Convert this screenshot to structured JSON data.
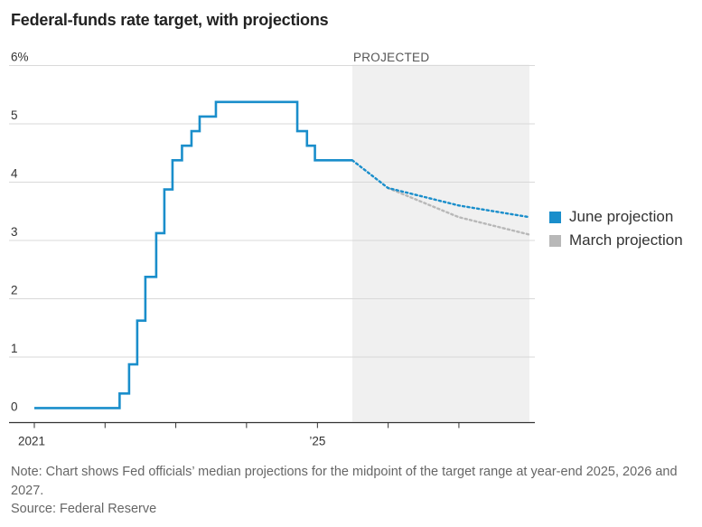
{
  "title": "Federal-funds rate target, with projections",
  "note": "Note: Chart shows Fed officials’ median projections for the midpoint of the target range at year-end 2025, 2026 and 2027.",
  "source": "Source: Federal Reserve",
  "colors": {
    "june": "#1a8ecb",
    "march": "#b8b8b8",
    "shade": "#f0f0f0",
    "grid": "#d9d9d9",
    "axis": "#333333"
  },
  "chart_data": {
    "type": "line",
    "title": "Federal-funds rate target, with projections",
    "xlabel": "",
    "ylabel": "",
    "x_range": [
      "2021-01-01",
      "2027-12-31"
    ],
    "ylim": [
      0,
      6
    ],
    "y_ticks": [
      0,
      1,
      2,
      3,
      4,
      5,
      6
    ],
    "y_tick_labels": [
      "0",
      "1",
      "2",
      "3",
      "4",
      "5",
      "6%"
    ],
    "x_ticks": [
      "2021-01-01",
      "2025-01-01"
    ],
    "x_tick_labels": [
      "2021",
      "’25"
    ],
    "grid": true,
    "legend_position": "right",
    "shaded_region": {
      "label": "PROJECTED",
      "start": "2025-06-30",
      "end": "2027-12-31"
    },
    "series": [
      {
        "name": "June projection",
        "style": "step",
        "points": [
          [
            "2021-01-01",
            0.125
          ],
          [
            "2022-03-17",
            0.375
          ],
          [
            "2022-05-05",
            0.875
          ],
          [
            "2022-06-16",
            1.625
          ],
          [
            "2022-07-28",
            2.375
          ],
          [
            "2022-09-22",
            3.125
          ],
          [
            "2022-11-03",
            3.875
          ],
          [
            "2022-12-15",
            4.375
          ],
          [
            "2023-02-02",
            4.625
          ],
          [
            "2023-03-23",
            4.875
          ],
          [
            "2023-05-04",
            5.125
          ],
          [
            "2023-07-27",
            5.375
          ],
          [
            "2024-09-19",
            4.875
          ],
          [
            "2024-11-08",
            4.625
          ],
          [
            "2024-12-19",
            4.375
          ],
          [
            "2025-06-30",
            4.375
          ]
        ]
      },
      {
        "name": "June projection",
        "style": "dotted",
        "points": [
          [
            "2025-06-30",
            4.375
          ],
          [
            "2025-12-31",
            3.9
          ],
          [
            "2026-12-31",
            3.6
          ],
          [
            "2027-12-31",
            3.4
          ]
        ]
      },
      {
        "name": "March projection",
        "style": "dotted",
        "points": [
          [
            "2025-12-31",
            3.9
          ],
          [
            "2026-12-31",
            3.4
          ],
          [
            "2027-12-31",
            3.1
          ]
        ]
      }
    ]
  },
  "legend": [
    {
      "label": "June projection",
      "color": "#1a8ecb"
    },
    {
      "label": "March projection",
      "color": "#b8b8b8"
    }
  ]
}
